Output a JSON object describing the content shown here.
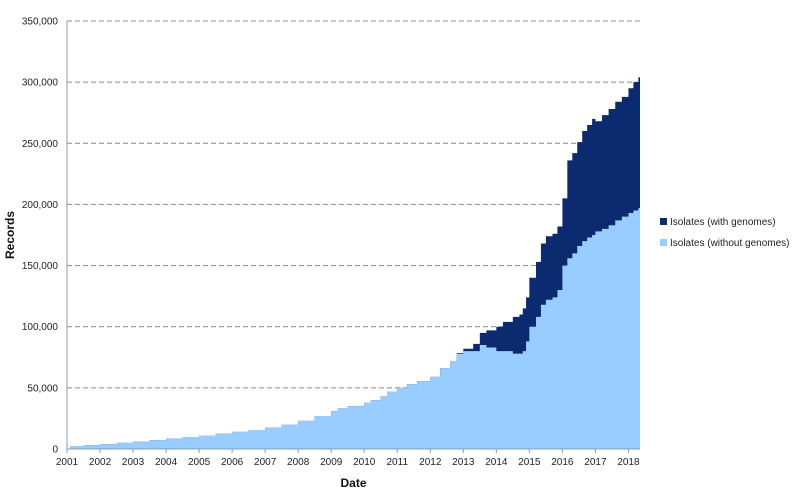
{
  "chart_data": {
    "type": "area",
    "stacked": true,
    "title": "",
    "xlabel": "Date",
    "ylabel": "Records",
    "xlim": [
      2001,
      2018.35
    ],
    "ylim": [
      0,
      350000
    ],
    "x_ticks": [
      "2001",
      "2002",
      "2003",
      "2004",
      "2005",
      "2006",
      "2007",
      "2008",
      "2009",
      "2010",
      "2011",
      "2012",
      "2013",
      "2014",
      "2015",
      "2016",
      "2017",
      "2018"
    ],
    "y_ticks": [
      "0",
      "50,000",
      "100,000",
      "150,000",
      "200,000",
      "250,000",
      "300,000",
      "350,000"
    ],
    "grid": "horizontal dashed",
    "legend_position": "right",
    "x": [
      2001.1,
      2001.5,
      2002,
      2002.5,
      2003,
      2003.5,
      2004,
      2004.5,
      2005,
      2005.5,
      2006,
      2006.5,
      2007,
      2007.5,
      2008,
      2008.5,
      2009,
      2009.2,
      2009.5,
      2010,
      2010.2,
      2010.5,
      2010.7,
      2011,
      2011.3,
      2011.6,
      2012,
      2012.3,
      2012.6,
      2012.8,
      2013,
      2013.3,
      2013.5,
      2013.7,
      2014,
      2014.2,
      2014.5,
      2014.7,
      2014.8,
      2014.9,
      2015,
      2015.2,
      2015.35,
      2015.5,
      2015.7,
      2015.85,
      2016,
      2016.15,
      2016.3,
      2016.45,
      2016.6,
      2016.75,
      2016.9,
      2017,
      2017.2,
      2017.4,
      2017.6,
      2017.8,
      2018,
      2018.15,
      2018.3
    ],
    "series": [
      {
        "name": "Isolates (without genomes)",
        "color": "#99ccff",
        "values": [
          2500,
          3200,
          4000,
          5000,
          6000,
          7200,
          8500,
          9800,
          11000,
          12500,
          14000,
          15500,
          17500,
          20000,
          23000,
          27000,
          31000,
          33500,
          35000,
          38000,
          40000,
          43000,
          47000,
          50000,
          53000,
          55500,
          59000,
          66000,
          72000,
          78000,
          80000,
          80000,
          85000,
          83000,
          80000,
          80000,
          78000,
          78000,
          80000,
          88000,
          100000,
          108000,
          118000,
          122000,
          124000,
          130000,
          150000,
          156000,
          160000,
          166000,
          170000,
          173000,
          175000,
          178000,
          180000,
          183000,
          187000,
          190000,
          193000,
          195000,
          197000
        ]
      },
      {
        "name": "Isolates (with genomes)",
        "color": "#0b2a70",
        "values": [
          0,
          0,
          0,
          0,
          0,
          0,
          0,
          0,
          0,
          0,
          0,
          0,
          0,
          0,
          0,
          0,
          0,
          0,
          0,
          0,
          0,
          0,
          0,
          0,
          0,
          0,
          0,
          0,
          0,
          500,
          2000,
          6000,
          10000,
          14000,
          20000,
          24000,
          30000,
          32000,
          35000,
          36000,
          40000,
          45000,
          50000,
          52000,
          52000,
          52000,
          55000,
          80000,
          82000,
          85000,
          90000,
          92000,
          95000,
          90000,
          93000,
          95000,
          97000,
          98000,
          102000,
          105000,
          107000
        ]
      }
    ]
  }
}
